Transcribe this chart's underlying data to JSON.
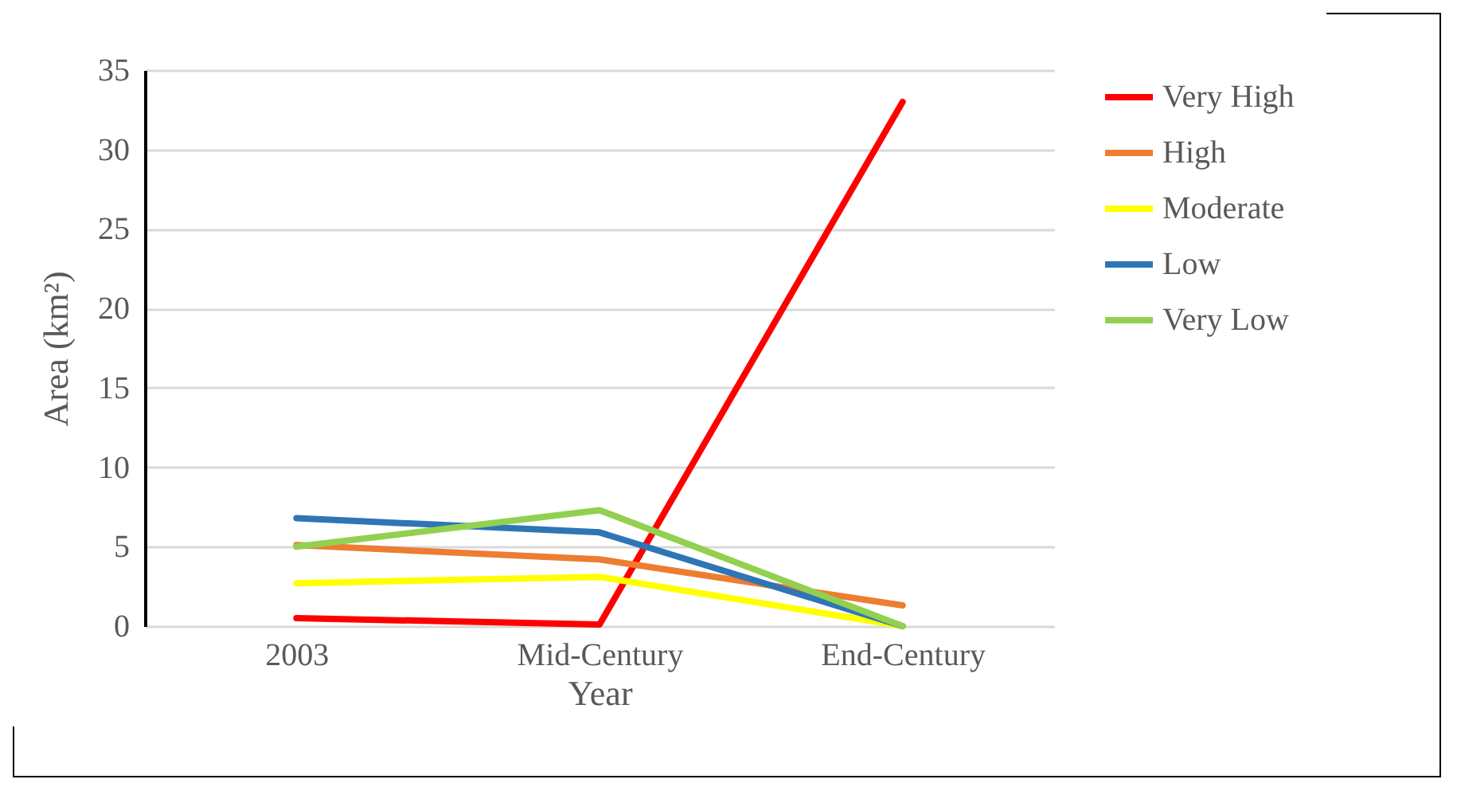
{
  "chart_data": {
    "type": "line",
    "xlabel": "Year",
    "ylabel": "Area (km²)",
    "categories": [
      "2003",
      "Mid-Century",
      "End-Century"
    ],
    "series": [
      {
        "name": "Very High",
        "color": "#ff0000",
        "values": [
          0.5,
          0.1,
          33
        ]
      },
      {
        "name": "High",
        "color": "#ed7d31",
        "values": [
          5.1,
          4.2,
          1.3
        ]
      },
      {
        "name": "Moderate",
        "color": "#ffff00",
        "values": [
          2.7,
          3.1,
          0
        ]
      },
      {
        "name": "Low",
        "color": "#2e75b6",
        "values": [
          6.8,
          5.9,
          0
        ]
      },
      {
        "name": "Very Low",
        "color": "#92d050",
        "values": [
          5.0,
          7.3,
          0
        ]
      }
    ],
    "ylim": [
      0,
      35
    ],
    "yticks": [
      0,
      5,
      10,
      15,
      20,
      25,
      30,
      35
    ],
    "grid": "y",
    "legend": "right",
    "marker": "none",
    "line_style": "solid"
  }
}
